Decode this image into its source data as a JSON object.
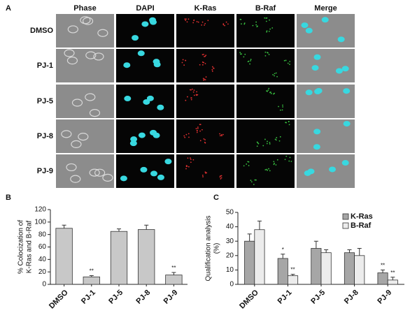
{
  "panel_a": {
    "label": "A",
    "columns": [
      {
        "text": "Phase",
        "color": "#111111"
      },
      {
        "text": "DAPI",
        "color": "#2a9fd6"
      },
      {
        "text": "K-Ras",
        "color": "#d02a2a"
      },
      {
        "text": "B-Raf",
        "color": "#2e9e3e"
      },
      {
        "text": "Merge",
        "color": "#111111"
      }
    ],
    "rows": [
      "DMSO",
      "PJ-1",
      "PJ-5",
      "PJ-8",
      "PJ-9"
    ]
  },
  "chart_data": [
    {
      "type": "bar",
      "panel_label": "B",
      "ylabel": [
        "% Colocization of",
        "K-Ras and B-Raf"
      ],
      "categories": [
        "DMSO",
        "PJ-1",
        "PJ-5",
        "PJ-8",
        "PJ-9"
      ],
      "series": [
        {
          "color": "#c8c8c8",
          "values": [
            90,
            12,
            85,
            88,
            15
          ],
          "errors": [
            5,
            2,
            4,
            7,
            4
          ],
          "annotations": [
            null,
            "**",
            null,
            null,
            "**"
          ]
        }
      ],
      "ylim": [
        0,
        120
      ],
      "yticks": [
        0,
        20,
        40,
        60,
        80,
        100,
        120
      ]
    },
    {
      "type": "bar",
      "panel_label": "C",
      "ylabel": [
        "Qualification analysis",
        "(%)"
      ],
      "categories": [
        "DMSO",
        "PJ-1",
        "PJ-5",
        "PJ-8",
        "PJ-9"
      ],
      "series": [
        {
          "name": "K-Ras",
          "color": "#a6a6a6",
          "values": [
            30,
            18,
            25,
            22,
            8
          ],
          "errors": [
            5,
            3,
            5,
            2,
            2
          ],
          "annotations": [
            null,
            "*",
            null,
            null,
            "**"
          ]
        },
        {
          "name": "B-Raf",
          "color": "#ececec",
          "values": [
            38,
            6,
            22,
            20,
            3
          ],
          "errors": [
            6,
            1,
            2,
            5,
            2
          ],
          "annotations": [
            null,
            "**",
            null,
            null,
            "**"
          ]
        }
      ],
      "ylim": [
        0,
        50
      ],
      "yticks": [
        0,
        10,
        20,
        30,
        40,
        50
      ],
      "legend": "upper right"
    }
  ]
}
